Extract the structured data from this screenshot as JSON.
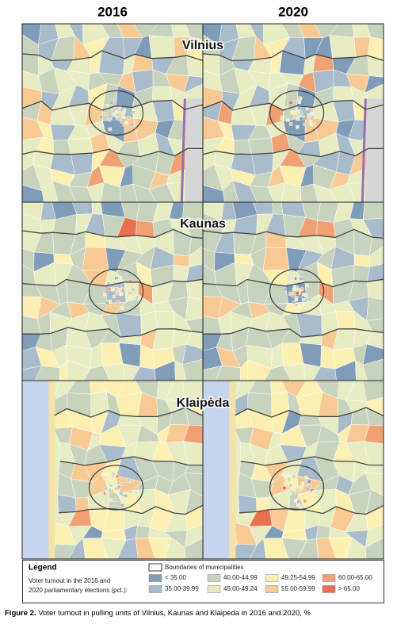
{
  "columns": [
    "2016",
    "2020"
  ],
  "cities": [
    "Vilnius",
    "Kaunas",
    "Klaipėda"
  ],
  "legend": {
    "title": "Legend",
    "description": [
      "Voter turnout in the 2016 and",
      "2020 parliamentary elections (pct.):"
    ],
    "boundary": "Boundaries of municipalities",
    "items": [
      {
        "label": "< 35.00",
        "color": "#7f9cb9"
      },
      {
        "label": "35.00-39.99",
        "color": "#a9bccb"
      },
      {
        "label": "40.00-44.99",
        "color": "#c8d3bd"
      },
      {
        "label": "45.00-49.24",
        "color": "#e7ecc3"
      },
      {
        "label": "49.25-54.99",
        "color": "#fbefb2"
      },
      {
        "label": "55.00-59.99",
        "color": "#f7ca93"
      },
      {
        "label": "60.00-65.00",
        "color": "#f0a174"
      },
      {
        "label": "> 65.00",
        "color": "#e86f4f"
      }
    ]
  },
  "caption": {
    "label": "Figure 2.",
    "text": "Voter turnout in pulling units of Vilnius, Kaunas and Klaipėda in 2016 and 2020, %"
  }
}
